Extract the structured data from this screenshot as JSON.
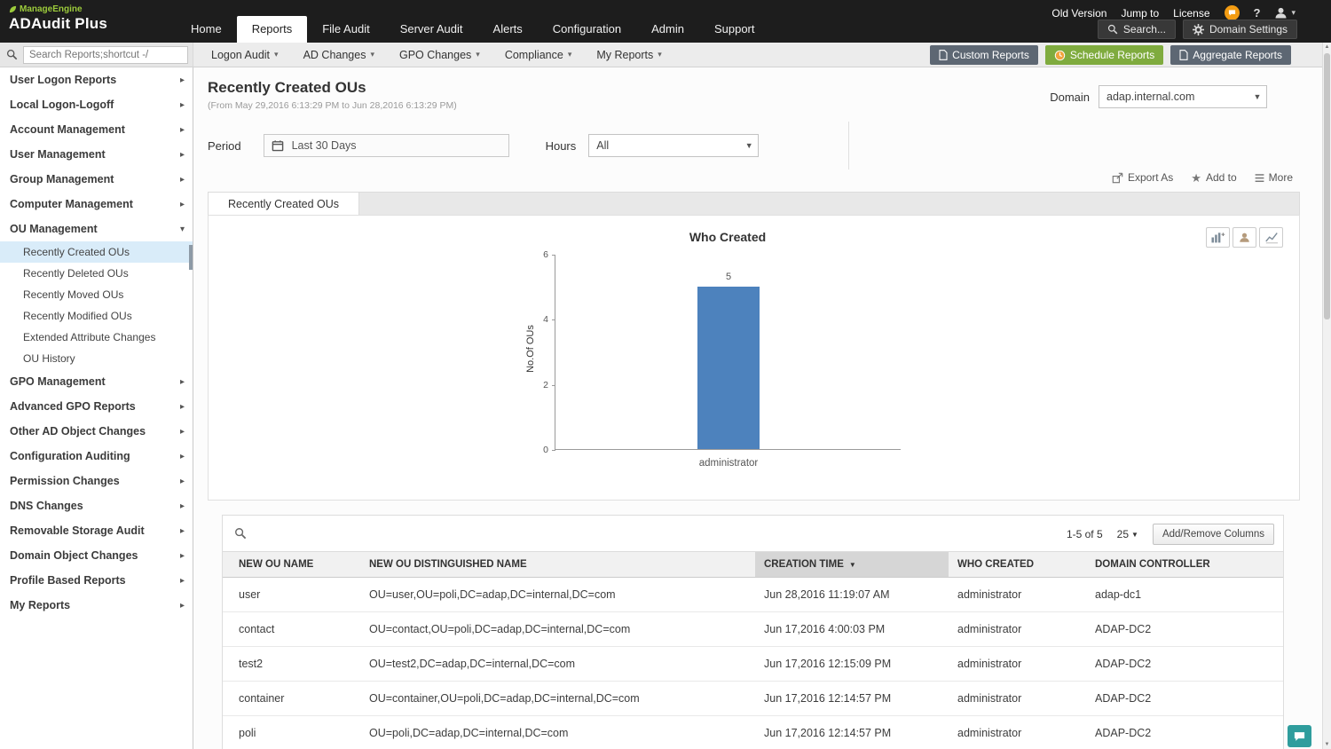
{
  "brand": {
    "company": "ManageEngine",
    "product": "ADAudit Plus"
  },
  "topbar": {
    "nav": [
      "Home",
      "Reports",
      "File Audit",
      "Server Audit",
      "Alerts",
      "Configuration",
      "Admin",
      "Support"
    ],
    "active_nav": "Reports",
    "quick_links": [
      "Old Version",
      "Jump to",
      "License"
    ],
    "search_label": "Search...",
    "domain_settings_label": "Domain Settings"
  },
  "toolbar": {
    "search_placeholder": "Search Reports;shortcut -/",
    "menus": [
      "Logon Audit",
      "AD Changes",
      "GPO Changes",
      "Compliance",
      "My Reports"
    ],
    "custom_reports": "Custom Reports",
    "schedule_reports": "Schedule Reports",
    "aggregate_reports": "Aggregate Reports"
  },
  "sidebar": {
    "selected": "Recently Created OUs",
    "items": [
      {
        "label": "User Logon Reports"
      },
      {
        "label": "Local Logon-Logoff"
      },
      {
        "label": "Account Management"
      },
      {
        "label": "User Management"
      },
      {
        "label": "Group Management"
      },
      {
        "label": "Computer Management"
      },
      {
        "label": "OU Management",
        "expanded": true,
        "children": [
          "Recently Created OUs",
          "Recently Deleted OUs",
          "Recently Moved OUs",
          "Recently Modified OUs",
          "Extended Attribute Changes",
          "OU History"
        ]
      },
      {
        "label": "GPO Management"
      },
      {
        "label": "Advanced GPO Reports"
      },
      {
        "label": "Other AD Object Changes"
      },
      {
        "label": "Configuration Auditing"
      },
      {
        "label": "Permission Changes"
      },
      {
        "label": "DNS Changes"
      },
      {
        "label": "Removable Storage Audit"
      },
      {
        "label": "Domain Object Changes"
      },
      {
        "label": "Profile Based Reports"
      },
      {
        "label": "My Reports"
      }
    ]
  },
  "page": {
    "title": "Recently Created OUs",
    "date_range": "(From May 29,2016 6:13:29 PM to Jun 28,2016 6:13:29 PM)",
    "domain_label": "Domain",
    "domain_value": "adap.internal.com",
    "period_label": "Period",
    "period_value": "Last 30 Days",
    "hours_label": "Hours",
    "hours_value": "All",
    "export_as": "Export As",
    "add_to": "Add to",
    "more": "More",
    "tab": "Recently Created OUs"
  },
  "chart_data": {
    "type": "bar",
    "title": "Who Created",
    "categories": [
      "administrator"
    ],
    "values": [
      5
    ],
    "xlabel": "",
    "ylabel": "No.Of OUs",
    "ylim": [
      0,
      6
    ],
    "yticks": [
      0,
      2,
      4,
      6
    ],
    "grid": false,
    "legend": "none",
    "bar_color": "#4d82bd"
  },
  "table": {
    "pagination": "1-5 of 5",
    "page_size": "25",
    "add_remove_columns": "Add/Remove Columns",
    "headers": [
      "NEW OU NAME",
      "NEW OU DISTINGUISHED NAME",
      "CREATION TIME",
      "WHO CREATED",
      "DOMAIN CONTROLLER"
    ],
    "sort_column": "CREATION TIME",
    "sort_direction": "desc",
    "rows": [
      [
        "user",
        "OU=user,OU=poli,DC=adap,DC=internal,DC=com",
        "Jun 28,2016 11:19:07 AM",
        "administrator",
        "adap-dc1"
      ],
      [
        "contact",
        "OU=contact,OU=poli,DC=adap,DC=internal,DC=com",
        "Jun 17,2016 4:00:03 PM",
        "administrator",
        "ADAP-DC2"
      ],
      [
        "test2",
        "OU=test2,DC=adap,DC=internal,DC=com",
        "Jun 17,2016 12:15:09 PM",
        "administrator",
        "ADAP-DC2"
      ],
      [
        "container",
        "OU=container,OU=poli,DC=adap,DC=internal,DC=com",
        "Jun 17,2016 12:14:57 PM",
        "administrator",
        "ADAP-DC2"
      ],
      [
        "poli",
        "OU=poli,DC=adap,DC=internal,DC=com",
        "Jun 17,2016 12:14:57 PM",
        "administrator",
        "ADAP-DC2"
      ]
    ]
  },
  "icons": {
    "search": "magnifier",
    "domain_settings": "gear",
    "help": "question-mark",
    "user": "person",
    "notification": "chat-bubble",
    "period": "calendar",
    "schedule_reports": "clock",
    "custom_reports": "document",
    "aggregate_reports": "document",
    "add_to": "star",
    "sort": "caret-down",
    "feedback": "chat-bubble"
  },
  "colors": {
    "topbar_bg": "#1d1d1d",
    "brand_green": "#9ccb3b",
    "button_green": "#7fab3e",
    "button_slate": "#5d6773",
    "bar_blue": "#4d82bd",
    "selected_item_bg": "#d9ecf9",
    "feedback_teal": "#2f9d9d",
    "notification_orange": "#f39c12"
  }
}
